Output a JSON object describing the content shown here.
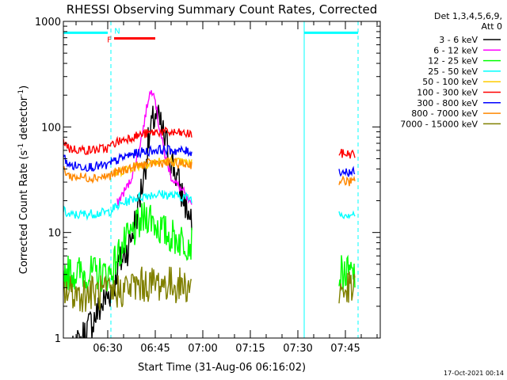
{
  "chart_data": {
    "type": "line",
    "title": "RHESSI Observing Summary Count Rates, Corrected",
    "xlabel": "Start Time (31-Aug-06 06:16:02)",
    "ylabel_main": "Corrected Count Rate (s",
    "ylabel_sup1": "-1",
    "ylabel_mid": " detector",
    "ylabel_sup2": "-1",
    "ylabel_end": ")",
    "y_scale": "log",
    "ylim": [
      1,
      1000
    ],
    "xlim_minutes": [
      0,
      100
    ],
    "yticks": [
      {
        "value": 1,
        "label": "1"
      },
      {
        "value": 10,
        "label": "10"
      },
      {
        "value": 100,
        "label": "100"
      },
      {
        "value": 1000,
        "label": "1000"
      }
    ],
    "xticks": [
      {
        "minute": 14,
        "label": "06:30"
      },
      {
        "minute": 29,
        "label": "06:45"
      },
      {
        "minute": 44,
        "label": "07:00"
      },
      {
        "minute": 59,
        "label": "07:15"
      },
      {
        "minute": 74,
        "label": "07:30"
      },
      {
        "minute": 89,
        "label": "07:45"
      }
    ],
    "legend_header": [
      "Det 1,3,4,5,6,9,",
      "Att 0"
    ],
    "legend_placement": "right",
    "footer_date": "17-Oct-2021 00:14",
    "series": [
      {
        "name": "3 - 6 keV",
        "color": "#000000",
        "segments": [
          {
            "x": [
              0,
              16,
              17,
              19,
              21,
              23,
              25,
              27,
              29,
              31,
              33,
              35,
              37,
              39,
              40.5
            ],
            "y": [
              0.5,
              3.2,
              4.5,
              6,
              8,
              14,
              30,
              75,
              135,
              95,
              60,
              40,
              25,
              17,
              11
            ]
          }
        ]
      },
      {
        "name": "6 - 12 keV",
        "color": "#ff00ff",
        "segments": [
          {
            "x": [
              17,
              19,
              21,
              23,
              25,
              27,
              28.5,
              30,
              32,
              34,
              36,
              38,
              40.5
            ],
            "y": [
              19,
              24,
              30,
              48,
              90,
              200,
              230,
              110,
              55,
              34,
              28,
              24,
              17
            ]
          }
        ]
      },
      {
        "name": "12 - 25 keV",
        "color": "#00ff00",
        "segments": [
          {
            "x": [
              0,
              14,
              15,
              17,
              19,
              21,
              23,
              25,
              27,
              29,
              31,
              33,
              35,
              37,
              40.5
            ],
            "y": [
              4.2,
              4.0,
              4.2,
              6,
              7.5,
              9,
              11,
              13,
              15,
              12,
              10.5,
              9.5,
              9,
              8.5,
              8
            ]
          },
          {
            "x": [
              87,
              92
            ],
            "y": [
              4.1,
              4.0
            ]
          }
        ]
      },
      {
        "name": "25 - 50 keV",
        "color": "#00ffff",
        "segments": [
          {
            "x": [
              0,
              2,
              8,
              14,
              16,
              19,
              22,
              25,
              28,
              31,
              34,
              37,
              40.5
            ],
            "y": [
              16,
              14.5,
              15,
              15.5,
              17,
              19,
              21,
              22,
              23,
              23,
              22.5,
              22,
              21
            ]
          },
          {
            "x": [
              87,
              92
            ],
            "y": [
              15,
              15
            ]
          }
        ]
      },
      {
        "name": "50 - 100 keV",
        "color": "#ffcc00",
        "segments": [
          {
            "x": [
              16,
              19,
              22,
              25,
              28,
              31,
              34,
              37,
              40.5
            ],
            "y": [
              36,
              39,
              42,
              44,
              46,
              47,
              47,
              46,
              45
            ]
          }
        ]
      },
      {
        "name": "100 - 300 keV",
        "color": "#ff0000",
        "segments": [
          {
            "x": [
              0,
              2,
              8,
              14,
              16,
              20,
              25,
              30,
              35,
              40.5
            ],
            "y": [
              75,
              62,
              60,
              63,
              70,
              78,
              85,
              90,
              88,
              85
            ]
          },
          {
            "x": [
              87,
              92
            ],
            "y": [
              56,
              55
            ]
          }
        ]
      },
      {
        "name": "300 - 800 keV",
        "color": "#0000ff",
        "segments": [
          {
            "x": [
              0,
              2,
              8,
              14,
              16,
              20,
              25,
              30,
              35,
              40.5
            ],
            "y": [
              52,
              43,
              42,
              43,
              47,
              53,
              58,
              61,
              60,
              58
            ]
          },
          {
            "x": [
              87,
              92
            ],
            "y": [
              38,
              37
            ]
          }
        ]
      },
      {
        "name": "800 - 7000 keV",
        "color": "#ff8800",
        "segments": [
          {
            "x": [
              0,
              2,
              8,
              14,
              16,
              20,
              25,
              30,
              35,
              40.5
            ],
            "y": [
              40,
              34,
              33,
              34,
              36,
              40,
              44,
              46,
              45,
              44
            ]
          },
          {
            "x": [
              87,
              92
            ],
            "y": [
              31,
              30
            ]
          }
        ]
      },
      {
        "name": "7000 - 15000 keV",
        "color": "#808000",
        "segments": [
          {
            "x": [
              0,
              5,
              10,
              15,
              20,
              25,
              30,
              35,
              40.5
            ],
            "y": [
              2.8,
              2.6,
              2.7,
              2.6,
              3.0,
              3.2,
              3.3,
              3.2,
              3.1
            ]
          },
          {
            "x": [
              87,
              92
            ],
            "y": [
              2.8,
              2.9
            ]
          }
        ]
      }
    ],
    "flag_bars": [
      {
        "label": "",
        "color": "#00ffff",
        "y_value": 780,
        "x_start": 0,
        "x_end": 14
      },
      {
        "label": "",
        "color": "#00ffff",
        "y_value": 780,
        "x_start": 76,
        "x_end": 93
      },
      {
        "label": "F",
        "color": "#ff0000",
        "y_value": 690,
        "x_start": 16,
        "x_end": 29
      }
    ],
    "flag_letters": [
      {
        "label": "F",
        "color": "#ff0000",
        "x": 14.5,
        "y_value": 680
      },
      {
        "label": "N",
        "color": "#00ffff",
        "x": 17,
        "y_value": 820
      }
    ],
    "vertical_lines": [
      {
        "x": 15,
        "color": "#00ffff",
        "style": "dashed"
      },
      {
        "x": 76,
        "color": "#00ffff",
        "style": "solid"
      },
      {
        "x": 93,
        "color": "#00ffff",
        "style": "dashed"
      }
    ]
  }
}
